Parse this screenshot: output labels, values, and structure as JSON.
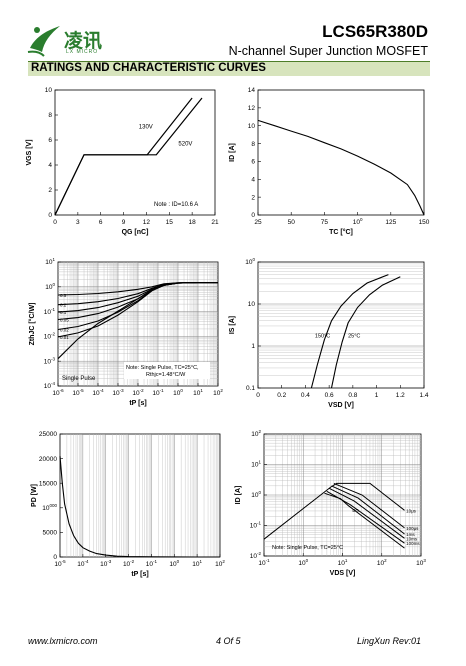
{
  "header": {
    "brand": "凌讯",
    "brand_sub": "LX MICRO",
    "part_number": "LCS65R380D",
    "subtitle": "N-channel Super Junction MOSFET",
    "section_title": "RATINGS AND CHARACTERISTIC CURVES",
    "brand_color": "#2a7d2e",
    "bar_color": "#d7e4bd"
  },
  "footer": {
    "website": "www.lxmicro.com",
    "page": "4 Of 5",
    "rev": "LingXun  Rev:01"
  },
  "chart_data": [
    {
      "type": "line",
      "xlabel": "QG [nC]",
      "ylabel": "VGS [V]",
      "xlim": [
        0,
        21
      ],
      "ylim": [
        0,
        11
      ],
      "xticks": [
        "0",
        "3",
        "6",
        "9",
        "12",
        "15",
        "18",
        "21"
      ],
      "yticks": [
        "0",
        "2",
        "4",
        "6",
        "8",
        "10"
      ],
      "series": [
        {
          "name": "130V",
          "x": [
            0,
            3.8,
            12.1,
            18
          ],
          "y": [
            0,
            5.3,
            5.3,
            10.3
          ]
        },
        {
          "name": "520V",
          "x": [
            0,
            3.8,
            13.3,
            19.3
          ],
          "y": [
            0,
            5.3,
            5.3,
            10.3
          ]
        }
      ],
      "note": "Note : ID=10.6 A"
    },
    {
      "type": "line",
      "xlabel": "TC [°C]",
      "ylabel": "ID [A]",
      "xlim": [
        25,
        150
      ],
      "ylim": [
        0,
        14
      ],
      "xticks": [
        "25",
        "50",
        "75",
        "100",
        "125",
        "150"
      ],
      "yticks": [
        "0",
        "2",
        "4",
        "6",
        "8",
        "10",
        "12",
        "14"
      ],
      "series": [
        {
          "name": "",
          "x": [
            25,
            37.5,
            50,
            62.5,
            75,
            87.5,
            100,
            112.5,
            125,
            137.5,
            143,
            147,
            150
          ],
          "y": [
            10.6,
            10.0,
            9.4,
            8.8,
            8.1,
            7.4,
            6.6,
            5.7,
            4.7,
            3.4,
            2.2,
            1.0,
            0
          ]
        }
      ]
    },
    {
      "type": "line",
      "xlabel": "tP [s]",
      "ylabel": "ZthJC [°C/W]",
      "xlim": [
        "10^-6",
        "10^2"
      ],
      "ylim": [
        "10^-4",
        "10^1"
      ],
      "xticks": [
        "10-6",
        "10-5",
        "10-4",
        "10-3",
        "10-2",
        "10-1",
        "100",
        "101",
        "102"
      ],
      "yticks": [
        "10-4",
        "10-3",
        "10-2",
        "10-1",
        "100",
        "101"
      ],
      "scale": "log-log",
      "curve_labels": [
        "0.5",
        "0.2",
        "0.1",
        "0.05",
        "0.02",
        "0.01"
      ],
      "single_pulse_label": "Single Pulse",
      "note": [
        "Note: Single Pulse, TC=25°C,",
        "Rthjc=1.48°C/W"
      ],
      "series": [
        {
          "name": "0.5",
          "logx": [
            -6,
            -5,
            -4,
            -3,
            -2,
            -1.3,
            -0.7,
            0,
            1,
            2
          ],
          "logy": [
            -0.33,
            -0.31,
            -0.27,
            -0.2,
            -0.1,
            0.0,
            0.12,
            0.16,
            0.17,
            0.17
          ]
        },
        {
          "name": "0.2",
          "logx": [
            -6,
            -5,
            -4,
            -3,
            -2,
            -1.3,
            -0.7,
            0,
            1,
            2
          ],
          "logy": [
            -0.72,
            -0.68,
            -0.6,
            -0.47,
            -0.28,
            -0.06,
            0.1,
            0.16,
            0.17,
            0.17
          ]
        },
        {
          "name": "0.1",
          "logx": [
            -6,
            -5,
            -4,
            -3,
            -2,
            -1.3,
            -0.7,
            0,
            1,
            2
          ],
          "logy": [
            -1.02,
            -0.96,
            -0.84,
            -0.64,
            -0.38,
            -0.1,
            0.08,
            0.15,
            0.17,
            0.17
          ]
        },
        {
          "name": "0.05",
          "logx": [
            -6,
            -5,
            -4,
            -3,
            -2,
            -1.3,
            -0.7,
            0,
            1,
            2
          ],
          "logy": [
            -1.32,
            -1.24,
            -1.08,
            -0.82,
            -0.48,
            -0.13,
            0.07,
            0.15,
            0.17,
            0.17
          ]
        },
        {
          "name": "0.02",
          "logx": [
            -6,
            -5,
            -4,
            -3,
            -2,
            -1.3,
            -0.7,
            0,
            1,
            2
          ],
          "logy": [
            -1.72,
            -1.6,
            -1.38,
            -1.02,
            -0.56,
            -0.15,
            0.06,
            0.15,
            0.17,
            0.17
          ]
        },
        {
          "name": "0.01",
          "logx": [
            -6,
            -5,
            -4,
            -3,
            -2,
            -1.3,
            -0.7,
            0,
            1,
            2
          ],
          "logy": [
            -2.02,
            -1.86,
            -1.58,
            -1.14,
            -0.6,
            -0.16,
            0.06,
            0.15,
            0.17,
            0.17
          ]
        },
        {
          "name": "Single Pulse",
          "logx": [
            -6,
            -5,
            -4,
            -3,
            -2,
            -1.3,
            -0.7,
            0,
            1,
            2
          ],
          "logy": [
            -2.9,
            -2.1,
            -1.48,
            -0.98,
            -0.48,
            -0.12,
            0.06,
            0.15,
            0.17,
            0.17
          ]
        }
      ]
    },
    {
      "type": "line",
      "xlabel": "VSD [V]",
      "ylabel": "IS [A]",
      "xlim": [
        0,
        1.4
      ],
      "ylim": [
        "0.1",
        "100"
      ],
      "xticks": [
        "0",
        "0.2",
        "0.4",
        "0.6",
        "0.8",
        "1",
        "1.2",
        "1.4"
      ],
      "yticks": [
        "0.1",
        "1",
        "10",
        "100"
      ],
      "scale": "semi-log-y",
      "series": [
        {
          "name": "150°C",
          "x": [
            0.45,
            0.5,
            0.56,
            0.62,
            0.7,
            0.8,
            0.92,
            1.1
          ],
          "logy": [
            -1,
            -0.45,
            0.15,
            0.6,
            0.95,
            1.25,
            1.5,
            1.7
          ]
        },
        {
          "name": "25°C",
          "x": [
            0.62,
            0.66,
            0.71,
            0.76,
            0.84,
            0.94,
            1.05,
            1.2
          ],
          "logy": [
            -1,
            -0.45,
            0.1,
            0.55,
            0.92,
            1.22,
            1.45,
            1.65
          ]
        }
      ]
    },
    {
      "type": "line",
      "xlabel": "tP [s]",
      "ylabel": "PD [W]",
      "xlim": [
        "10^-5",
        "10^2"
      ],
      "ylim": [
        0,
        25000
      ],
      "xticks": [
        "10-5",
        "10-4",
        "10-3",
        "10-2",
        "10-1",
        "100",
        "101",
        "102"
      ],
      "yticks": [
        "0",
        "5000",
        "10000",
        "15000",
        "20000",
        "25000"
      ],
      "scale": "semi-log-x",
      "series": [
        {
          "name": "",
          "logx": [
            -5,
            -4.9,
            -4.8,
            -4.6,
            -4.4,
            -4.2,
            -4,
            -3.7,
            -3.4,
            -3,
            -2.5,
            -2,
            -1,
            0,
            1,
            2
          ],
          "y": [
            20500,
            15000,
            10800,
            6700,
            4300,
            2800,
            1900,
            1200,
            700,
            380,
            160,
            90,
            40,
            20,
            10,
            5
          ]
        }
      ]
    },
    {
      "type": "line",
      "xlabel": "VDS [V]",
      "ylabel": "ID [A]",
      "xlim": [
        "10^-1",
        "10^3"
      ],
      "ylim": [
        "10^-2",
        "10^2"
      ],
      "xticks": [
        "10-1",
        "100",
        "101",
        "102",
        "103"
      ],
      "yticks": [
        "10-2",
        "10-1",
        "100",
        "101",
        "102"
      ],
      "scale": "log-log",
      "note": "Note: Single Pulse, TC=25°C",
      "series": [
        {
          "name": "10μs",
          "logx": [
            -1,
            0.7,
            0.85,
            1.7,
            2.58
          ],
          "logy": [
            -1.45,
            0.26,
            0.38,
            0.38,
            -0.5
          ]
        },
        {
          "name": "100μs",
          "logx": [
            0.78,
            1.5,
            2.58
          ],
          "logy": [
            0.38,
            0.0,
            -1.08
          ]
        },
        {
          "name": "1ms",
          "logx": [
            0.72,
            1.4,
            2.58
          ],
          "logy": [
            0.3,
            -0.1,
            -1.28
          ]
        },
        {
          "name": "10ms",
          "logx": [
            0.66,
            1.3,
            2.58
          ],
          "logy": [
            0.22,
            -0.2,
            -1.42
          ]
        },
        {
          "name": "100ms",
          "logx": [
            0.6,
            1.2,
            2.58
          ],
          "logy": [
            0.12,
            -0.32,
            -1.58
          ]
        },
        {
          "name": "DC",
          "logx": [
            0.54,
            0.95,
            1.15,
            2.58
          ],
          "logy": [
            0.06,
            -0.12,
            -0.35,
            -1.74
          ]
        }
      ]
    }
  ]
}
